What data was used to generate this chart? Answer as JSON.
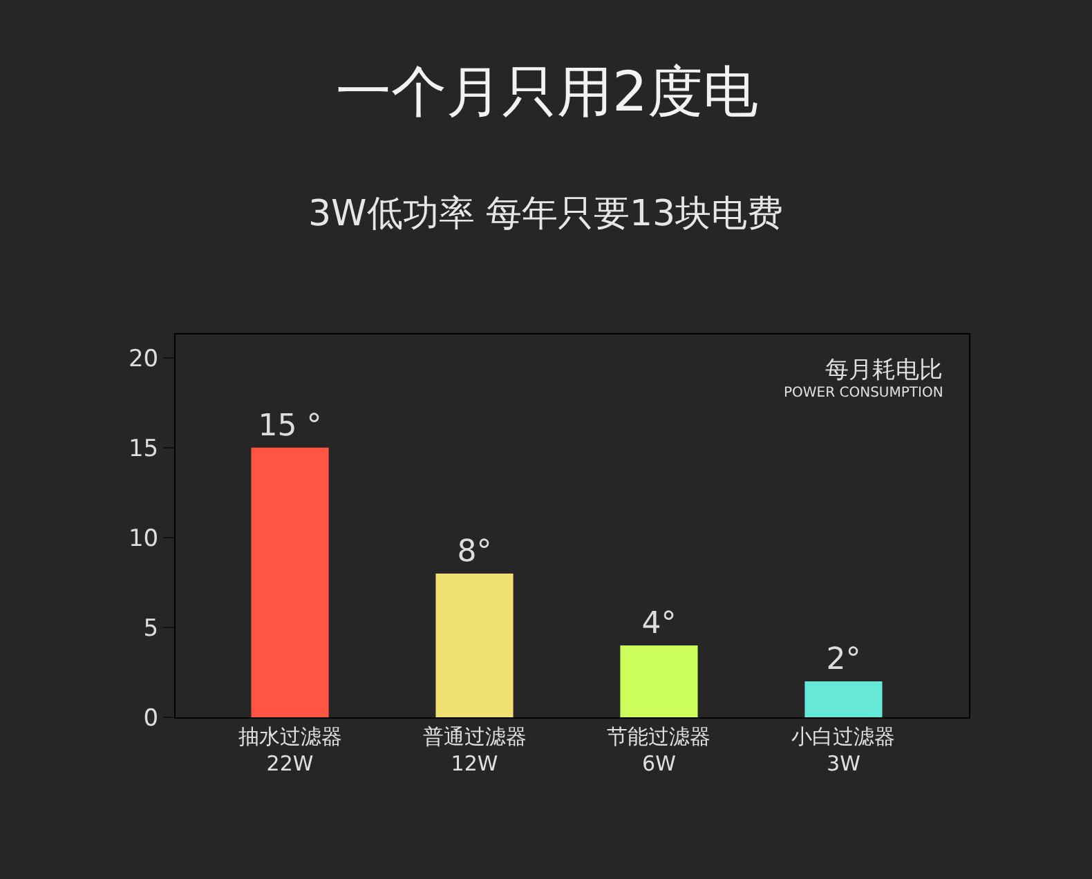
{
  "chart_data": {
    "type": "bar",
    "title": "一个月只用2度电",
    "subtitle": "3W低功率 每年只要13块电费",
    "categories": [
      "抽水过滤器\n22W",
      "普通过滤器\n12W",
      "节能过滤器\n6W",
      "小白过滤器\n3W"
    ],
    "values": [
      15,
      8,
      4,
      2
    ],
    "value_labels": [
      "15 °",
      "8°",
      "4°",
      "2°"
    ],
    "colors": [
      "#ff5545",
      "#f0e070",
      "#ccff5a",
      "#66e8d8"
    ],
    "ylim": [
      0,
      21.3
    ],
    "yticks": [
      0,
      5,
      10,
      15,
      20
    ],
    "grid": false,
    "legend": false,
    "annotations": [
      "每月耗电比",
      "POWER CONSUMPTION"
    ]
  }
}
